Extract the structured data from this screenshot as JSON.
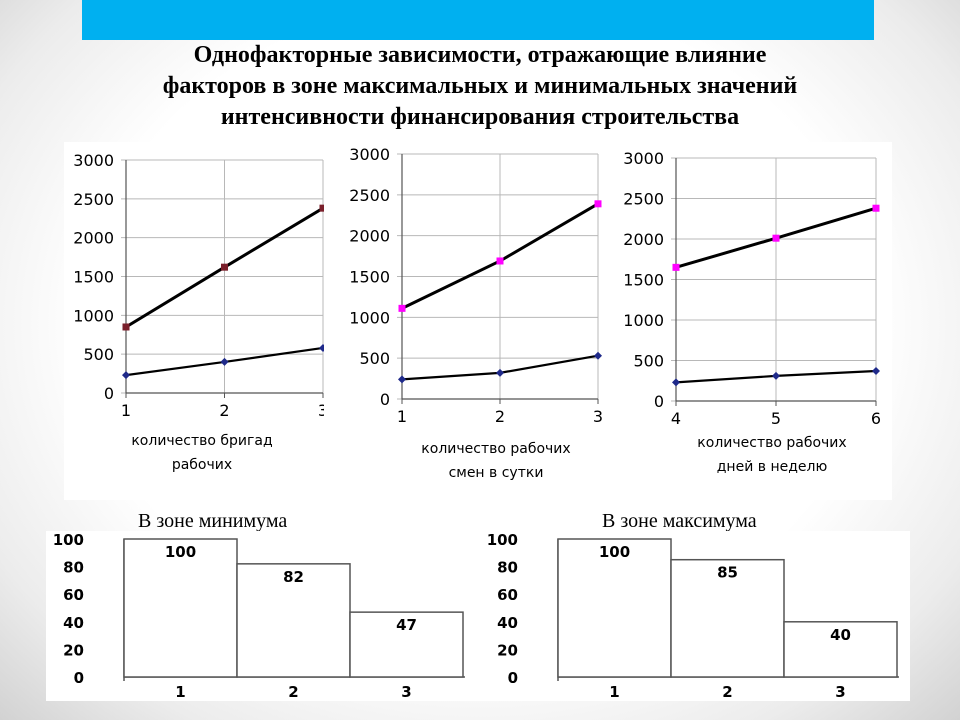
{
  "slide": {
    "title_lines": [
      "Однофакторные зависимости, отражающие влияние",
      "факторов в зоне максимальных и минимальных  значений",
      "интенсивности финансирования строительства"
    ],
    "zone_min_label": "В зоне минимума",
    "zone_max_label": "В зоне максимума",
    "accent_color": "#00b0f0"
  },
  "chart_data": [
    {
      "type": "line",
      "x": [
        1,
        2,
        3
      ],
      "ylim": [
        0,
        3000
      ],
      "yticks": [
        0,
        500,
        1000,
        1500,
        2000,
        2500,
        3000
      ],
      "xlabel_lines": [
        "количество бригад",
        "рабочих"
      ],
      "series": [
        {
          "values": [
            850,
            1620,
            2380
          ],
          "color": "#000000",
          "marker_color": "#7a1f2b"
        },
        {
          "values": [
            230,
            400,
            580
          ],
          "color": "#000000",
          "marker_color": "#1f2a8a"
        }
      ]
    },
    {
      "type": "line",
      "x": [
        1,
        2,
        3
      ],
      "ylim": [
        0,
        3000
      ],
      "yticks": [
        0,
        500,
        1000,
        1500,
        2000,
        2500,
        3000
      ],
      "xlabel_lines": [
        "количество рабочих",
        "смен в сутки"
      ],
      "series": [
        {
          "values": [
            1110,
            1690,
            2390
          ],
          "color": "#000000",
          "marker_color": "#ff00ff"
        },
        {
          "values": [
            240,
            320,
            530
          ],
          "color": "#000000",
          "marker_color": "#1f2a8a"
        }
      ]
    },
    {
      "type": "line",
      "x": [
        4,
        5,
        6
      ],
      "ylim": [
        0,
        3000
      ],
      "yticks": [
        0,
        500,
        1000,
        1500,
        2000,
        2500,
        3000
      ],
      "xlabel_lines": [
        "количество рабочих",
        "дней в неделю"
      ],
      "series": [
        {
          "values": [
            1650,
            2010,
            2380
          ],
          "color": "#000000",
          "marker_color": "#ff00ff"
        },
        {
          "values": [
            230,
            310,
            370
          ],
          "color": "#000000",
          "marker_color": "#1f2a8a"
        }
      ]
    },
    {
      "type": "bar",
      "categories": [
        "1",
        "2",
        "3"
      ],
      "values": [
        100,
        82,
        47
      ],
      "ylim": [
        0,
        100
      ],
      "yticks": [
        0,
        20,
        40,
        60,
        80,
        100
      ]
    },
    {
      "type": "bar",
      "categories": [
        "1",
        "2",
        "3"
      ],
      "values": [
        100,
        85,
        40
      ],
      "ylim": [
        0,
        100
      ],
      "yticks": [
        0,
        20,
        40,
        60,
        80,
        100
      ]
    }
  ]
}
